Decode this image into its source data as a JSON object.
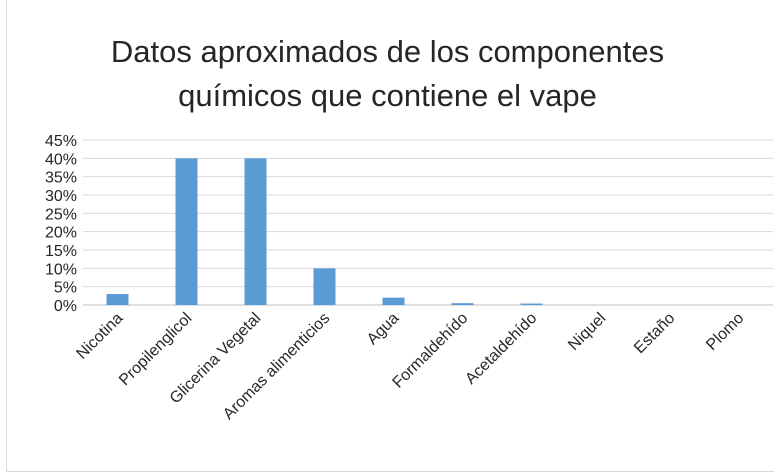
{
  "chart_data": {
    "type": "bar",
    "title_lines": [
      "Datos aproximados de los componentes",
      "químicos que contiene el vape"
    ],
    "categories": [
      "Nicotina",
      "Propilenglicol",
      "Glicerina Vegetal",
      "Aromas alimenticios",
      "Agua",
      "Formaldehído",
      "Acetaldehído",
      "Niquel",
      "Estaño",
      "Plomo"
    ],
    "values": [
      0.03,
      0.4,
      0.4,
      0.1,
      0.02,
      0.005,
      0.004,
      0.0,
      0.0,
      0.0
    ],
    "ylim": [
      0,
      0.45
    ],
    "yticks": [
      0,
      0.05,
      0.1,
      0.15,
      0.2,
      0.25,
      0.3,
      0.35,
      0.4,
      0.45
    ],
    "ytick_labels": [
      "0%",
      "5%",
      "10%",
      "15%",
      "20%",
      "25%",
      "30%",
      "35%",
      "40%",
      "45%"
    ],
    "xlabel": "",
    "ylabel": "",
    "grid": true,
    "legend": "none",
    "bar_color": "#5b9bd5"
  }
}
